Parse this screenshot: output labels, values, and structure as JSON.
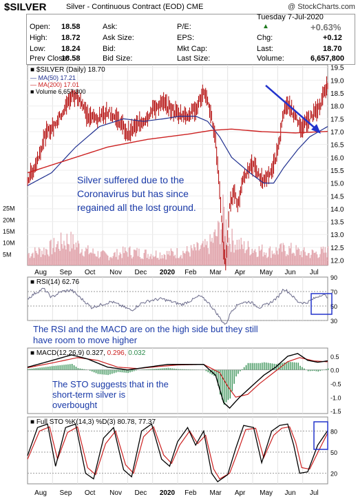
{
  "header": {
    "symbol": "$SILVER",
    "subtitle": "Silver - Continuous Contract (EOD)",
    "exchange": "CME",
    "brand": "@ StockCharts.com"
  },
  "quote": {
    "labels": {
      "open": "Open:",
      "high": "High:",
      "low": "Low:",
      "prev_close": "Prev Close:",
      "ask": "Ask:",
      "ask_size": "Ask Size:",
      "bid": "Bid:",
      "bid_size": "Bid Size:",
      "pe": "P/E:",
      "eps": "EPS:",
      "mkt_cap": "Mkt Cap:",
      "last_size": "Last Size:",
      "chg": "Chg:",
      "last": "Last:",
      "volume": "Volume:"
    },
    "open": "18.58",
    "high": "18.72",
    "low": "18.24",
    "prev_close": "18.58",
    "date": "Tuesday  7-Jul-2020",
    "change_pct": "+0.63%",
    "change": "+0.12",
    "last": "18.70",
    "volume": "6,657,800"
  },
  "colors": {
    "price_bar": "#b00000",
    "ma50": "#1f2f8f",
    "ma200": "#cc2020",
    "volume_bar": "#e0a0a8",
    "rsi_line": "#6a6a8a",
    "macd_line": "#000000",
    "signal_line": "#cc2020",
    "hist_color": "#2a8a4a",
    "sto_k": "#000000",
    "sto_d": "#cc2020",
    "annotation": "#1a3aa8",
    "arrow": "#2233cc",
    "box": "#2233cc"
  },
  "chart_data": [
    {
      "type": "line",
      "panel": "price",
      "title": "$SILVER (Daily) 18.70",
      "legend": [
        {
          "name": "MA(50) 17.21"
        },
        {
          "name": "MA(200) 17.01"
        },
        {
          "name": "Volume 6,657,800"
        }
      ],
      "ylim": [
        11.8,
        19.6
      ],
      "y_ticks": [
        "19.5",
        "19.0",
        "18.5",
        "18.0",
        "17.5",
        "17.0",
        "16.5",
        "16.0",
        "15.5",
        "15.0",
        "14.5",
        "14.0",
        "13.5",
        "13.0",
        "12.5",
        "12.0"
      ],
      "volume_ticks": [
        "25M",
        "20M",
        "15M",
        "10M",
        "5M"
      ],
      "x_ticks": [
        "Aug",
        "Sep",
        "Oct",
        "Nov",
        "Dec",
        "2020",
        "Feb",
        "Mar",
        "Apr",
        "May",
        "Jun",
        "Jul"
      ],
      "price_knots": [
        [
          0,
          15.1
        ],
        [
          8,
          15.7
        ],
        [
          18,
          16.9
        ],
        [
          26,
          17.2
        ],
        [
          36,
          17.8
        ],
        [
          44,
          18.4
        ],
        [
          52,
          18.3
        ],
        [
          60,
          17.6
        ],
        [
          70,
          17.5
        ],
        [
          80,
          17.8
        ],
        [
          92,
          17.4
        ],
        [
          100,
          16.9
        ],
        [
          108,
          17.2
        ],
        [
          118,
          17.5
        ],
        [
          126,
          17.9
        ],
        [
          136,
          18.1
        ],
        [
          146,
          17.8
        ],
        [
          158,
          17.6
        ],
        [
          168,
          17.9
        ],
        [
          176,
          18.5
        ],
        [
          180,
          18.1
        ],
        [
          184,
          17.6
        ],
        [
          188,
          16.6
        ],
        [
          192,
          14.8
        ],
        [
          196,
          12.4
        ],
        [
          198,
          11.9
        ],
        [
          202,
          14.0
        ],
        [
          206,
          14.8
        ],
        [
          210,
          14.1
        ],
        [
          216,
          15.3
        ],
        [
          226,
          15.7
        ],
        [
          234,
          15.1
        ],
        [
          242,
          15.3
        ],
        [
          250,
          16.2
        ],
        [
          256,
          17.8
        ],
        [
          262,
          18.0
        ],
        [
          268,
          17.5
        ],
        [
          274,
          17.2
        ],
        [
          280,
          17.4
        ],
        [
          286,
          17.7
        ],
        [
          292,
          17.9
        ],
        [
          297,
          18.7
        ],
        [
          300,
          18.7
        ]
      ],
      "ma50_knots": [
        [
          0,
          14.9
        ],
        [
          24,
          15.4
        ],
        [
          48,
          16.4
        ],
        [
          72,
          17.2
        ],
        [
          96,
          17.5
        ],
        [
          116,
          17.4
        ],
        [
          136,
          17.5
        ],
        [
          152,
          17.6
        ],
        [
          168,
          17.6
        ],
        [
          180,
          17.4
        ],
        [
          192,
          16.8
        ],
        [
          204,
          16.0
        ],
        [
          222,
          15.4
        ],
        [
          236,
          15.0
        ],
        [
          246,
          15.0
        ],
        [
          256,
          15.6
        ],
        [
          270,
          16.3
        ],
        [
          282,
          16.8
        ],
        [
          300,
          17.2
        ]
      ],
      "ma200_knots": [
        [
          0,
          15.4
        ],
        [
          40,
          15.9
        ],
        [
          80,
          16.4
        ],
        [
          120,
          16.7
        ],
        [
          160,
          16.9
        ],
        [
          184,
          17.05
        ],
        [
          204,
          17.1
        ],
        [
          234,
          17.0
        ],
        [
          268,
          16.95
        ],
        [
          300,
          17.01
        ]
      ],
      "volume_knots": [
        [
          0,
          5
        ],
        [
          20,
          7
        ],
        [
          40,
          11
        ],
        [
          60,
          6
        ],
        [
          80,
          4
        ],
        [
          100,
          6
        ],
        [
          120,
          5
        ],
        [
          140,
          5
        ],
        [
          160,
          6
        ],
        [
          180,
          8
        ],
        [
          190,
          14
        ],
        [
          196,
          22
        ],
        [
          200,
          12
        ],
        [
          215,
          8
        ],
        [
          240,
          6
        ],
        [
          260,
          7
        ],
        [
          280,
          5
        ],
        [
          300,
          6
        ]
      ]
    },
    {
      "type": "line",
      "panel": "rsi",
      "title": "RSI(14) 62.76",
      "ylim": [
        30,
        90
      ],
      "y_ticks": [
        "90",
        "70",
        "50",
        "30"
      ],
      "knots": [
        [
          0,
          60
        ],
        [
          8,
          68
        ],
        [
          16,
          74
        ],
        [
          24,
          62
        ],
        [
          34,
          70
        ],
        [
          44,
          72
        ],
        [
          54,
          60
        ],
        [
          64,
          48
        ],
        [
          74,
          52
        ],
        [
          84,
          56
        ],
        [
          94,
          50
        ],
        [
          104,
          44
        ],
        [
          114,
          54
        ],
        [
          124,
          58
        ],
        [
          134,
          60
        ],
        [
          144,
          56
        ],
        [
          154,
          52
        ],
        [
          164,
          58
        ],
        [
          172,
          64
        ],
        [
          180,
          56
        ],
        [
          188,
          42
        ],
        [
          194,
          30
        ],
        [
          198,
          24
        ],
        [
          204,
          44
        ],
        [
          212,
          54
        ],
        [
          222,
          56
        ],
        [
          232,
          48
        ],
        [
          242,
          54
        ],
        [
          250,
          62
        ],
        [
          256,
          74
        ],
        [
          262,
          68
        ],
        [
          270,
          56
        ],
        [
          278,
          54
        ],
        [
          286,
          60
        ],
        [
          294,
          66
        ],
        [
          300,
          62.76
        ]
      ]
    },
    {
      "type": "line",
      "panel": "macd",
      "title": "MACD(12,26,9)",
      "legend": [
        {
          "name": "0.327",
          "key": "macd"
        },
        {
          "name": "0.296",
          "key": "signal"
        },
        {
          "name": "0.032",
          "key": "hist"
        }
      ],
      "ylim": [
        -1.6,
        0.8
      ],
      "y_ticks": [
        "0.5",
        "0.0",
        "-0.5",
        "-1.0",
        "-1.5"
      ],
      "macd_knots": [
        [
          0,
          0.1
        ],
        [
          20,
          0.3
        ],
        [
          44,
          0.55
        ],
        [
          60,
          0.4
        ],
        [
          80,
          0.1
        ],
        [
          100,
          0.0
        ],
        [
          120,
          0.1
        ],
        [
          140,
          0.2
        ],
        [
          160,
          0.2
        ],
        [
          176,
          0.2
        ],
        [
          188,
          -0.2
        ],
        [
          196,
          -1.2
        ],
        [
          202,
          -1.4
        ],
        [
          212,
          -1.0
        ],
        [
          224,
          -0.6
        ],
        [
          236,
          -0.2
        ],
        [
          248,
          0.1
        ],
        [
          260,
          0.5
        ],
        [
          270,
          0.6
        ],
        [
          280,
          0.35
        ],
        [
          290,
          0.28
        ],
        [
          300,
          0.33
        ]
      ],
      "signal_knots": [
        [
          0,
          0.08
        ],
        [
          24,
          0.25
        ],
        [
          50,
          0.45
        ],
        [
          70,
          0.35
        ],
        [
          90,
          0.1
        ],
        [
          110,
          0.05
        ],
        [
          130,
          0.12
        ],
        [
          150,
          0.18
        ],
        [
          176,
          0.2
        ],
        [
          192,
          -0.1
        ],
        [
          200,
          -0.6
        ],
        [
          208,
          -1.0
        ],
        [
          220,
          -0.9
        ],
        [
          232,
          -0.5
        ],
        [
          246,
          -0.1
        ],
        [
          260,
          0.3
        ],
        [
          272,
          0.45
        ],
        [
          286,
          0.33
        ],
        [
          300,
          0.296
        ]
      ]
    },
    {
      "type": "line",
      "panel": "sto",
      "title": "Full STO %K(14,3) %D(3) 80.78, 77.37",
      "ylim": [
        5,
        100
      ],
      "y_ticks": [
        "80",
        "50",
        "20"
      ],
      "k_knots": [
        [
          0,
          45
        ],
        [
          10,
          85
        ],
        [
          20,
          90
        ],
        [
          28,
          30
        ],
        [
          38,
          85
        ],
        [
          48,
          90
        ],
        [
          58,
          20
        ],
        [
          66,
          12
        ],
        [
          76,
          70
        ],
        [
          86,
          85
        ],
        [
          96,
          25
        ],
        [
          104,
          15
        ],
        [
          114,
          80
        ],
        [
          124,
          90
        ],
        [
          134,
          40
        ],
        [
          142,
          30
        ],
        [
          150,
          65
        ],
        [
          160,
          85
        ],
        [
          168,
          60
        ],
        [
          176,
          80
        ],
        [
          184,
          20
        ],
        [
          190,
          8
        ],
        [
          200,
          18
        ],
        [
          208,
          55
        ],
        [
          216,
          88
        ],
        [
          226,
          85
        ],
        [
          234,
          35
        ],
        [
          244,
          80
        ],
        [
          252,
          88
        ],
        [
          260,
          90
        ],
        [
          266,
          60
        ],
        [
          272,
          20
        ],
        [
          280,
          22
        ],
        [
          290,
          60
        ],
        [
          300,
          80.78
        ]
      ],
      "d_knots": [
        [
          0,
          40
        ],
        [
          12,
          80
        ],
        [
          22,
          86
        ],
        [
          30,
          40
        ],
        [
          40,
          78
        ],
        [
          50,
          86
        ],
        [
          60,
          28
        ],
        [
          68,
          18
        ],
        [
          78,
          62
        ],
        [
          88,
          80
        ],
        [
          98,
          32
        ],
        [
          106,
          20
        ],
        [
          116,
          72
        ],
        [
          126,
          86
        ],
        [
          136,
          46
        ],
        [
          144,
          34
        ],
        [
          152,
          60
        ],
        [
          162,
          80
        ],
        [
          170,
          62
        ],
        [
          178,
          74
        ],
        [
          186,
          26
        ],
        [
          192,
          12
        ],
        [
          202,
          20
        ],
        [
          210,
          50
        ],
        [
          218,
          82
        ],
        [
          228,
          84
        ],
        [
          236,
          42
        ],
        [
          246,
          74
        ],
        [
          254,
          84
        ],
        [
          262,
          86
        ],
        [
          268,
          64
        ],
        [
          274,
          28
        ],
        [
          282,
          26
        ],
        [
          292,
          55
        ],
        [
          300,
          77.37
        ]
      ],
      "x_ticks": [
        "Aug",
        "Sep",
        "Oct",
        "Nov",
        "Dec",
        "2020",
        "Feb",
        "Mar",
        "Apr",
        "May",
        "Jun",
        "Jul"
      ]
    }
  ],
  "annotations": {
    "price_note": [
      "Silver suffered due to the",
      "Coronavirus but has since",
      "regained all the lost ground."
    ],
    "rsi_note": [
      "The RSI and the MACD are on the high side but they still",
      "have room to move higher"
    ],
    "sto_note": [
      "The STO suggests that in the",
      "short-term silver is",
      "overbought"
    ]
  }
}
